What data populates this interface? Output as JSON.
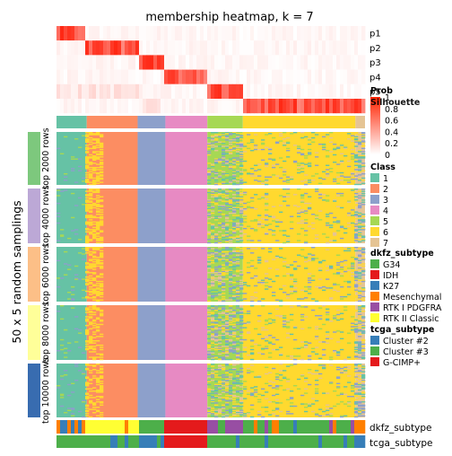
{
  "title": "membership heatmap, k = 7",
  "y_axis_label": "50 x 5 random samplings",
  "row_groups": [
    {
      "label": "top 2000 rows",
      "color": "#7dc87d"
    },
    {
      "label": "top 4000 rows",
      "color": "#bca8d6"
    },
    {
      "label": "top 6000 rows",
      "color": "#fcbf87"
    },
    {
      "label": "top 8000 rows",
      "color": "#ffff99"
    },
    {
      "label": "top 10000 rows",
      "color": "#386cb0"
    }
  ],
  "membership_rows": [
    "p1",
    "p2",
    "p3",
    "p4",
    "p5",
    "p6"
  ],
  "prob_legend": {
    "title": "Prob",
    "ticks": [
      "1",
      "0.8",
      "0.6",
      "0.4",
      "0.2",
      "0"
    ]
  },
  "silhouette_legend": {
    "title": "Silhouette"
  },
  "class_legend": {
    "title": "Class",
    "items": [
      {
        "label": "1",
        "color": "#66c2a5"
      },
      {
        "label": "2",
        "color": "#fc8d62"
      },
      {
        "label": "3",
        "color": "#8da0cb"
      },
      {
        "label": "4",
        "color": "#e78ac3"
      },
      {
        "label": "5",
        "color": "#a6d854"
      },
      {
        "label": "6",
        "color": "#ffd92f"
      },
      {
        "label": "7",
        "color": "#e5c494"
      }
    ]
  },
  "dkfz_legend": {
    "title": "dkfz_subtype",
    "items": [
      {
        "label": "G34",
        "color": "#4daf4a"
      },
      {
        "label": "IDH",
        "color": "#e41a1c"
      },
      {
        "label": "K27",
        "color": "#377eb8"
      },
      {
        "label": "Mesenchymal",
        "color": "#ff7f00"
      },
      {
        "label": "RTK I PDGFRA",
        "color": "#984ea3"
      },
      {
        "label": "RTK II Classic",
        "color": "#ffff33"
      }
    ]
  },
  "tcga_legend": {
    "title": "tcga_subtype",
    "items": [
      {
        "label": "Cluster #2",
        "color": "#377eb8"
      },
      {
        "label": "Cluster #3",
        "color": "#4daf4a"
      },
      {
        "label": "G-CIMP+",
        "color": "#e41a1c"
      }
    ]
  },
  "bottom_annotations": [
    "dkfz_subtype",
    "tcga_subtype"
  ],
  "chart_data": {
    "type": "heatmap",
    "k": 7,
    "membership_rows": [
      "p1",
      "p2",
      "p3",
      "p4",
      "p5",
      "p6"
    ],
    "class_order_by_column_block": [
      1,
      2,
      3,
      4,
      5,
      6,
      7
    ],
    "class_block_fractions": [
      {
        "class": "1",
        "fraction": 0.098
      },
      {
        "class": "2",
        "fraction": 0.165
      },
      {
        "class": "3",
        "fraction": 0.09
      },
      {
        "class": "4",
        "fraction": 0.136
      },
      {
        "class": "5",
        "fraction": 0.115
      },
      {
        "class": "6",
        "fraction": 0.365
      },
      {
        "class": "7",
        "fraction": 0.031
      }
    ],
    "row_groups": [
      "top 2000 rows",
      "top 4000 rows",
      "top 6000 rows",
      "top 8000 rows",
      "top 10000 rows"
    ],
    "samplings_per_group": 50,
    "prob_range": [
      0,
      1
    ]
  }
}
